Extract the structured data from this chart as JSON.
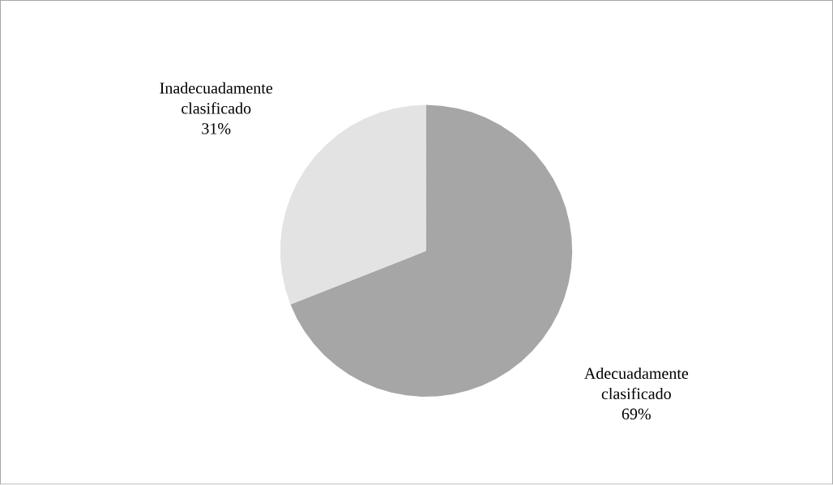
{
  "chart_data": {
    "type": "pie",
    "categories": [
      "Adecuadamente clasificado",
      "Inadecuadamente clasificado"
    ],
    "values": [
      69,
      31
    ],
    "colors": [
      "#a6a6a6",
      "#e3e3e3"
    ],
    "value_labels": [
      "69%",
      "31%"
    ]
  }
}
